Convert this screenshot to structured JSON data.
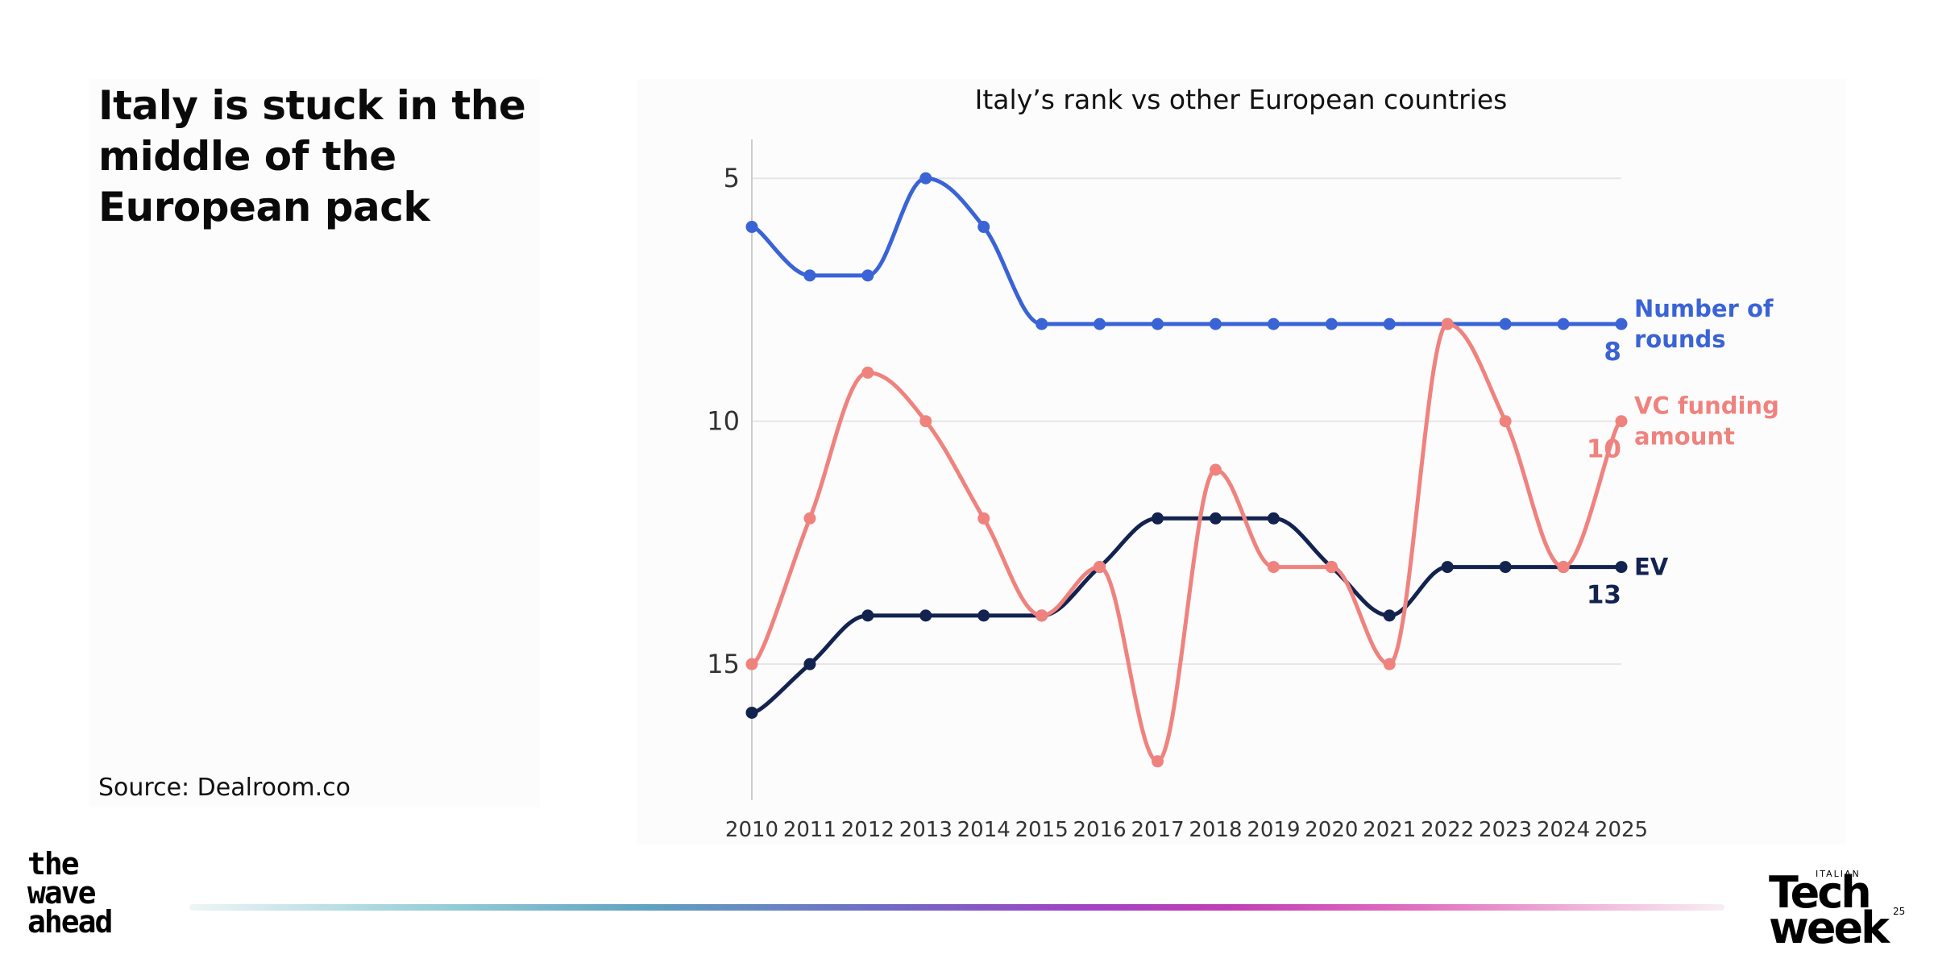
{
  "headline": "Italy is stuck in the middle of the European pack",
  "source": "Source:  Dealroom.co",
  "branding": {
    "left_logo": [
      "the",
      "wave",
      "ahead"
    ],
    "right_logo_small": "ITALIAN",
    "right_logo_line1": "Tech",
    "right_logo_line2": "week",
    "right_logo_number": "25"
  },
  "colors": {
    "rounds": "#3a63d6",
    "funding": "#f0827e",
    "ev": "#13234f",
    "grid": "#e6e6e6",
    "axis": "#cccccc"
  },
  "chart_data": {
    "type": "line",
    "title": "Italy’s rank vs other European countries",
    "x": [
      2010,
      2011,
      2012,
      2013,
      2014,
      2015,
      2016,
      2017,
      2018,
      2019,
      2020,
      2021,
      2022,
      2023,
      2024,
      2025
    ],
    "y_ticks": [
      5,
      10,
      15
    ],
    "ylim": [
      4.2,
      17.8
    ],
    "y_inverted": true,
    "grid": true,
    "series": [
      {
        "key": "rounds",
        "name": "Number of rounds",
        "label_lines": [
          "Number of",
          "rounds"
        ],
        "end_value": "8",
        "values": [
          6,
          7,
          7,
          5,
          6,
          8,
          8,
          8,
          8,
          8,
          8,
          8,
          8,
          8,
          8,
          8
        ]
      },
      {
        "key": "funding",
        "name": "VC funding amount",
        "label_lines": [
          "VC funding",
          "amount"
        ],
        "end_value": "10",
        "values": [
          15,
          12,
          9,
          10,
          12,
          14,
          13,
          17,
          11,
          13,
          13,
          15,
          8,
          10,
          13,
          10
        ]
      },
      {
        "key": "ev",
        "name": "EV",
        "label_lines": [
          "EV"
        ],
        "end_value": "13",
        "values": [
          16,
          15,
          14,
          14,
          14,
          14,
          13,
          12,
          12,
          12,
          13,
          14,
          13,
          13,
          13,
          13
        ]
      }
    ]
  }
}
